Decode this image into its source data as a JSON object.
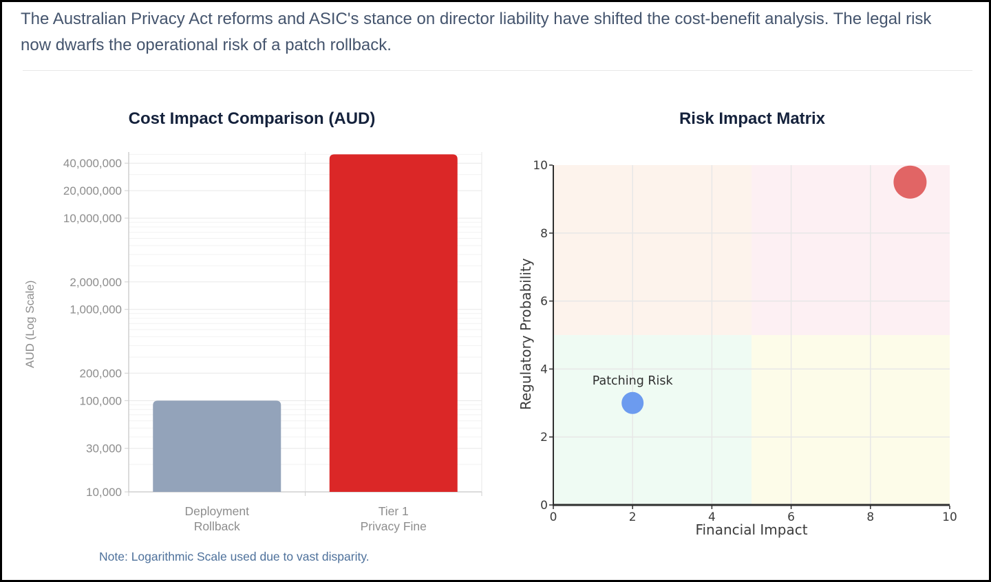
{
  "page": {
    "header": "The Australian Privacy Act reforms and ASIC's stance on director liability have shifted the cost-benefit analysis. The legal risk now dwarfs the operational risk of a patch rollback.",
    "note": "Note: Logarithmic Scale used due to vast disparity."
  },
  "chart_data": [
    {
      "type": "bar",
      "title": "Cost Impact Comparison (AUD)",
      "xlabel": "",
      "ylabel": "AUD (Log Scale)",
      "yscale": "log",
      "categories": [
        "Deployment Rollback",
        "Tier 1 Privacy Fine"
      ],
      "category_lines": [
        [
          "Deployment",
          "Rollback"
        ],
        [
          "Tier 1",
          "Privacy Fine"
        ]
      ],
      "values": [
        100000,
        50000000
      ],
      "bar_colors": [
        "#93a3ba",
        "#db2727"
      ],
      "ylim": [
        10000,
        53000000
      ],
      "yticks": [
        10000,
        30000,
        100000,
        200000,
        1000000,
        2000000,
        10000000,
        20000000,
        40000000
      ],
      "grid": true,
      "grid_color": "#e7e7e7",
      "minor_grid_color": "#f2f2f2",
      "axis_color": "#cfcfcf",
      "tick_label_color": "#8d8d8d"
    },
    {
      "type": "scatter",
      "title": "Risk Impact Matrix",
      "xlabel": "Financial Impact",
      "ylabel": "Regulatory Probability",
      "xlim": [
        0,
        10
      ],
      "ylim": [
        0,
        10
      ],
      "xticks": [
        0,
        2,
        4,
        6,
        8,
        10
      ],
      "yticks": [
        0,
        2,
        4,
        6,
        8,
        10
      ],
      "grid": true,
      "grid_step": 2,
      "grid_color": "#e7e7e7",
      "spine_color": "#2e2e2e",
      "tick_label_color": "#3b3b3b",
      "quadrant_split": {
        "x": 5,
        "y": 5
      },
      "quadrant_colors": {
        "top_left": "#fdf3ec",
        "top_right": "#fdf0f3",
        "bottom_left": "#effbf3",
        "bottom_right": "#fdfce9"
      },
      "points": [
        {
          "label": "Patching Risk",
          "x": 2,
          "y": 3,
          "radius": 16,
          "color": "#6c9bef",
          "label_color": "#2f2f2f"
        },
        {
          "x": 9,
          "y": 9.5,
          "radius": 24,
          "color": "#e16565"
        }
      ]
    }
  ]
}
